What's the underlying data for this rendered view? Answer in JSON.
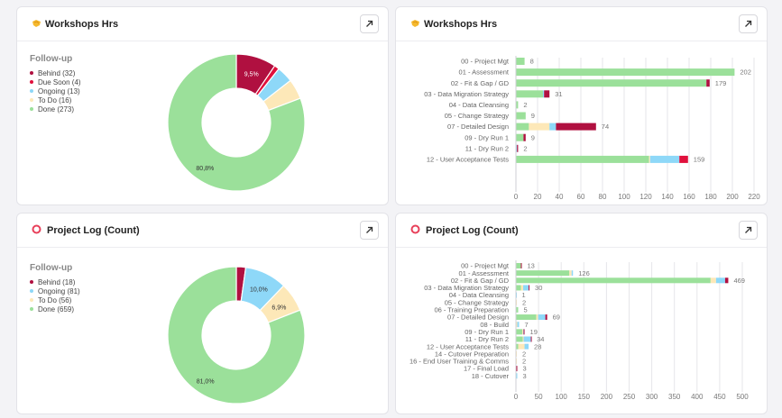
{
  "colors": {
    "behind": "#b01040",
    "due_soon": "#e0103c",
    "ongoing": "#8ed8f8",
    "todo": "#fde8b8",
    "done": "#9be09a",
    "grid": "#e6e6ea",
    "axis_text": "#777777"
  },
  "cards": [
    {
      "title": "Workshops Hrs",
      "icon": "handshake-icon",
      "legend_title": "Follow-up",
      "chart_data": {
        "type": "pie",
        "title": "Workshops Hrs",
        "subtype": "donut",
        "legend_title": "Follow-up",
        "legend_position": "left",
        "slices": [
          {
            "name": "Behind",
            "value": 32,
            "label": "Behind (32)",
            "color_key": "behind",
            "pct_label": "9,5%"
          },
          {
            "name": "Due Soon",
            "value": 4,
            "label": "Due Soon (4)",
            "color_key": "due_soon",
            "pct_label": ""
          },
          {
            "name": "Ongoing",
            "value": 13,
            "label": "Ongoing (13)",
            "color_key": "ongoing",
            "pct_label": ""
          },
          {
            "name": "To Do",
            "value": 16,
            "label": "To Do (16)",
            "color_key": "todo",
            "pct_label": ""
          },
          {
            "name": "Done",
            "value": 273,
            "label": "Done (273)",
            "color_key": "done",
            "pct_label": "80,8%"
          }
        ]
      }
    },
    {
      "title": "Workshops Hrs",
      "icon": "handshake-icon",
      "chart_data": {
        "type": "bar",
        "orientation": "horizontal",
        "stacked": true,
        "title": "Workshops Hrs",
        "xlim": [
          0,
          220
        ],
        "xticks": [
          0,
          20,
          40,
          60,
          80,
          100,
          120,
          140,
          160,
          180,
          200,
          220
        ],
        "grid": true,
        "categories": [
          "00 - Project Mgt",
          "01 - Assessment",
          "02 - Fit & Gap / GD",
          "03 - Data Migration Strategy",
          "04 - Data Cleansing",
          "05 - Change Strategy",
          "07 - Detailed Design",
          "09 - Dry Run 1",
          "11 - Dry Run 2",
          "12 - User Acceptance Tests"
        ],
        "totals": [
          8,
          202,
          179,
          31,
          2,
          9,
          74,
          9,
          2,
          159
        ],
        "series": [
          {
            "name": "Done",
            "color_key": "done",
            "values": [
              8,
              202,
              176,
              25,
              2,
              9,
              12,
              7,
              0,
              123
            ]
          },
          {
            "name": "To Do",
            "color_key": "todo",
            "values": [
              0,
              0,
              0,
              0,
              0,
              0,
              19,
              0,
              0,
              1
            ]
          },
          {
            "name": "Ongoing",
            "color_key": "ongoing",
            "values": [
              0,
              0,
              0,
              1,
              0,
              0,
              6,
              0,
              1,
              27
            ]
          },
          {
            "name": "Behind",
            "color_key": "behind",
            "values": [
              0,
              0,
              3,
              5,
              0,
              0,
              37,
              2,
              1,
              0
            ]
          },
          {
            "name": "Due Soon",
            "color_key": "due_soon",
            "values": [
              0,
              0,
              0,
              0,
              0,
              0,
              0,
              0,
              0,
              8
            ]
          }
        ]
      }
    },
    {
      "title": "Project Log (Count)",
      "icon": "ring-icon",
      "legend_title": "Follow-up",
      "chart_data": {
        "type": "pie",
        "title": "Project Log (Count)",
        "subtype": "donut",
        "legend_title": "Follow-up",
        "legend_position": "left",
        "slices": [
          {
            "name": "Behind",
            "value": 18,
            "label": "Behind (18)",
            "color_key": "behind",
            "pct_label": ""
          },
          {
            "name": "Ongoing",
            "value": 81,
            "label": "Ongoing (81)",
            "color_key": "ongoing",
            "pct_label": "10,0%"
          },
          {
            "name": "To Do",
            "value": 56,
            "label": "To Do (56)",
            "color_key": "todo",
            "pct_label": "6,9%"
          },
          {
            "name": "Done",
            "value": 659,
            "label": "Done (659)",
            "color_key": "done",
            "pct_label": "81,0%"
          }
        ]
      }
    },
    {
      "title": "Project Log (Count)",
      "icon": "ring-icon",
      "chart_data": {
        "type": "bar",
        "orientation": "horizontal",
        "stacked": true,
        "title": "Project Log (Count)",
        "xlim": [
          0,
          500
        ],
        "xticks": [
          0,
          50,
          100,
          150,
          200,
          250,
          300,
          350,
          400,
          450,
          500
        ],
        "grid": true,
        "categories": [
          "00 - Project Mgt",
          "01 - Assessment",
          "02 - Fit & Gap / GD",
          "03 - Data Migration Strategy",
          "04 - Data Cleansing",
          "05 - Change Strategy",
          "06 - Training Preparation",
          "07 - Detailed Design",
          "08 - Build",
          "09 - Dry Run 1",
          "11 - Dry Run 2",
          "12 - User Acceptance Tests",
          "14 - Cutover Preparation",
          "16 - End User Training & Comms",
          "17 - Final Load",
          "18 - Cutover"
        ],
        "totals": [
          13,
          126,
          469,
          30,
          1,
          2,
          5,
          69,
          7,
          19,
          34,
          28,
          2,
          2,
          3,
          3
        ],
        "series": [
          {
            "name": "Done",
            "color_key": "done",
            "values": [
              11,
              118,
              430,
              11,
              0,
              0,
              5,
              45,
              0,
              14,
              15,
              5,
              0,
              0,
              0,
              0
            ]
          },
          {
            "name": "To Do",
            "color_key": "todo",
            "values": [
              0,
              5,
              12,
              5,
              0,
              2,
              0,
              4,
              3,
              2,
              2,
              14,
              2,
              2,
              0,
              0
            ]
          },
          {
            "name": "Ongoing",
            "color_key": "ongoing",
            "values": [
              0,
              3,
              20,
              12,
              1,
              0,
              0,
              16,
              4,
              1,
              16,
              9,
              0,
              0,
              1,
              3
            ]
          },
          {
            "name": "Behind",
            "color_key": "behind",
            "values": [
              2,
              0,
              7,
              2,
              0,
              0,
              0,
              4,
              0,
              2,
              1,
              0,
              0,
              0,
              2,
              0
            ]
          }
        ]
      }
    }
  ]
}
